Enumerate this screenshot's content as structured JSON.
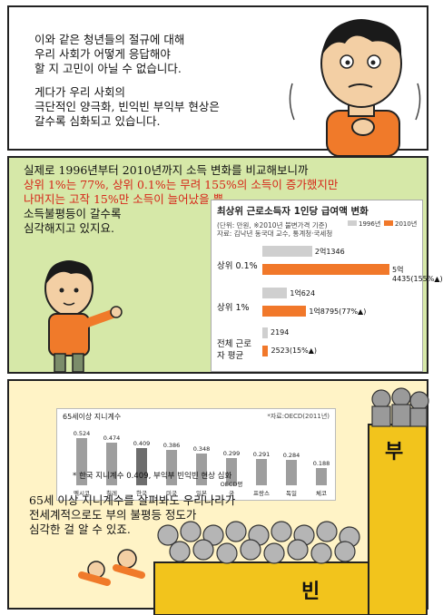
{
  "panel1": {
    "para1": [
      "이와 같은 청년들의 절규에 대해",
      "우리 사회가 어떻게 응답해야",
      "할 지 고민이 아닐 수 없습니다."
    ],
    "para2": [
      "게다가 우리 사회의",
      "극단적인 양극화, 빈익빈 부익부 현상은",
      "갈수록 심화되고 있습니다."
    ]
  },
  "panel2": {
    "lines": [
      "실제로 1996년부터 2010년까지 소득 변화를 비교해보니까"
    ],
    "red_lines": [
      "상위 1%는 77%, 상위 0.1%는 무려 155%의 소득이 증가했지만",
      "나머지는 고작 15%만 소득이 늘어났을 뿐,"
    ],
    "tail": [
      "소득불평등이 갈수록",
      "심각해지고 있지요."
    ]
  },
  "panel3": {
    "caption": [
      "65세 이상 지니계수를 살펴봐도 우리나라가",
      "전세계적으로도 부의 불평등 정도가",
      "심각한 걸 알 수 있죠."
    ],
    "label_rich": "부",
    "label_poor": "빈"
  },
  "chart_data": [
    {
      "type": "bar",
      "title": "최상위 근로소득자 1인당 급여액 변화",
      "unit": "(단위: 만원, ※2010년 불변가격 기준)",
      "source": "자료: 김낙년 동국대 교수, 통계청·국세청",
      "legend": [
        "1996년",
        "2010년"
      ],
      "categories": [
        "상위 0.1%",
        "상위 1%",
        "전체 근로자 평균"
      ],
      "series": [
        {
          "name": "1996년",
          "values": [
            21346,
            10624,
            2194
          ],
          "labels": [
            "2억1346",
            "1억624",
            "2194"
          ]
        },
        {
          "name": "2010년",
          "values": [
            54435,
            18795,
            2523
          ],
          "labels": [
            "5억4435",
            "1억8795",
            "2523"
          ]
        }
      ],
      "change_labels": [
        "(155%▲)",
        "(77%▲)",
        "(15%▲)"
      ],
      "colors": {
        "1996": "#cfcfcf",
        "2010": "#f1782a"
      }
    },
    {
      "type": "bar",
      "title": "65세이상 지니계수",
      "source": "*자료:OECD(2011년)",
      "categories": [
        "멕시코",
        "칠레",
        "한국",
        "미국",
        "일본",
        "OECD평균",
        "프랑스",
        "독일",
        "체코"
      ],
      "values": [
        0.524,
        0.474,
        0.409,
        0.386,
        0.348,
        0.299,
        0.291,
        0.284,
        0.188
      ],
      "note": "* 한국 지니계수 0.409, 부익부 빈익빈 현상 심화",
      "colors": {
        "bar": "#9e9e9e"
      }
    }
  ]
}
